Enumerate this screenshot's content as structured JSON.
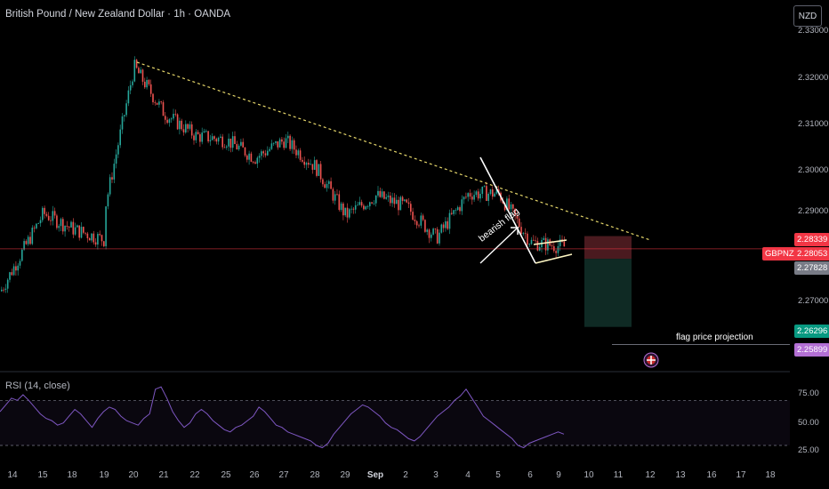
{
  "title": "British Pound / New Zealand Dollar · 1h · OANDA",
  "currency_button": "NZD",
  "rsi_label": "RSI (14, close)",
  "symbol_tag": "GBPNZD",
  "annotations": {
    "pattern": "bearish flag",
    "projection": "flag price projection"
  },
  "colors": {
    "up": "#26a69a",
    "down": "#ef5350",
    "trendline": "#e6d76b",
    "rsi": "#7e57c2",
    "stop_zone": "#4a1a1f",
    "target_zone": "#0f2a24",
    "tag_price": "#f23645",
    "tag_target": "#089981",
    "tag_rsi": "#b36fd4"
  },
  "chart_data": [
    {
      "type": "candlestick",
      "title": "British Pound / New Zealand Dollar · 1h · OANDA",
      "y_ticks": [
        "2.33000",
        "2.32000",
        "2.31000",
        "2.30000",
        "2.29000",
        "2.27000"
      ],
      "ylim": [
        2.2545,
        2.3345
      ],
      "x_ticks": [
        "14",
        "15",
        "18",
        "19",
        "20",
        "21",
        "22",
        "25",
        "26",
        "27",
        "28",
        "29",
        "Sep",
        "2",
        "3",
        "4",
        "5",
        "6",
        "9",
        "10",
        "11",
        "12",
        "13",
        "16",
        "17",
        "18"
      ],
      "price_tags": {
        "stop": "2.28339",
        "last_price": "2.28053",
        "entry": "2.27828",
        "target": "2.26296",
        "projection": "2.25899"
      },
      "trendline": {
        "from": {
          "x": "20",
          "y": 2.3225
        },
        "to": {
          "x": "12",
          "y": 2.2825
        }
      },
      "series_close_path": [
        {
          "x": "14",
          "y": 2.271
        },
        {
          "x": "15",
          "y": 2.2885
        },
        {
          "x": "18",
          "y": 2.285
        },
        {
          "x": "19",
          "y": 2.2825
        },
        {
          "x": "19",
          "y": 2.2895
        },
        {
          "x": "20",
          "y": 2.3215
        },
        {
          "x": "21",
          "y": 2.311
        },
        {
          "x": "22",
          "y": 2.306
        },
        {
          "x": "25",
          "y": 2.305
        },
        {
          "x": "26",
          "y": 2.301
        },
        {
          "x": "27",
          "y": 2.305
        },
        {
          "x": "28",
          "y": 2.299
        },
        {
          "x": "29",
          "y": 2.288
        },
        {
          "x": "Sep",
          "y": 2.2925
        },
        {
          "x": "2",
          "y": 2.29
        },
        {
          "x": "3",
          "y": 2.283
        },
        {
          "x": "4",
          "y": 2.293
        },
        {
          "x": "5",
          "y": 2.293
        },
        {
          "x": "6",
          "y": 2.282
        },
        {
          "x": "9",
          "y": 2.281
        }
      ]
    },
    {
      "type": "line",
      "title": "RSI (14, close)",
      "y_ticks": [
        "75.00",
        "50.00",
        "25.00"
      ],
      "ylim": [
        15,
        90
      ],
      "bands": [
        70,
        30
      ],
      "series": [
        {
          "values": [
            60,
            66,
            72,
            70,
            75,
            70,
            64,
            58,
            54,
            52,
            48,
            50,
            56,
            62,
            58,
            52,
            46,
            54,
            60,
            64,
            62,
            56,
            52,
            50,
            48,
            54,
            58,
            80,
            82,
            72,
            60,
            52,
            46,
            50,
            58,
            62,
            58,
            52,
            48,
            44,
            42,
            46,
            48,
            52,
            56,
            64,
            60,
            54,
            48,
            46,
            42,
            40,
            38,
            36,
            34,
            30,
            28,
            32,
            40,
            46,
            52,
            58,
            62,
            66,
            64,
            60,
            56,
            50,
            46,
            44,
            40,
            36,
            34,
            38,
            44,
            50,
            56,
            60,
            64,
            70,
            74,
            80,
            72,
            64,
            56,
            52,
            48,
            44,
            40,
            36,
            30,
            28,
            32,
            34,
            36,
            38,
            40,
            42,
            40
          ]
        }
      ]
    }
  ]
}
